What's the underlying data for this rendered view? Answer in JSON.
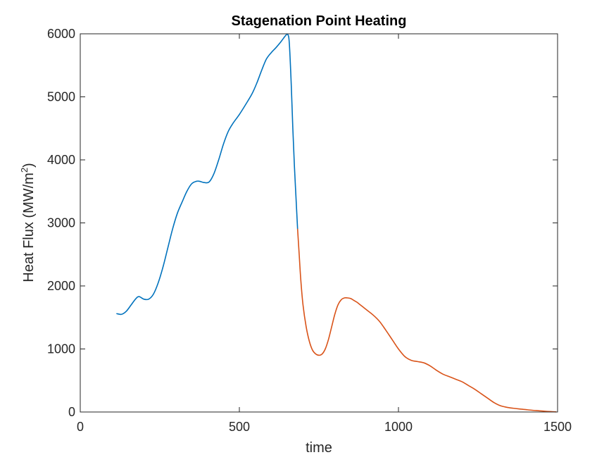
{
  "chart_data": {
    "type": "line",
    "title": "Stagenation Point Heating",
    "xlabel": "time",
    "ylabel": {
      "prefix": "Heat Flux (MW/m",
      "superscript": "2",
      "suffix": ")"
    },
    "xlim": [
      0,
      1500
    ],
    "ylim": [
      0,
      6000
    ],
    "xticks": [
      0,
      500,
      1000,
      1500
    ],
    "yticks": [
      0,
      1000,
      2000,
      3000,
      4000,
      5000,
      6000
    ],
    "colors": {
      "blue": "#0072BD",
      "orange": "#D95319"
    },
    "series": [
      {
        "color": "#0072BD",
        "x": [
          115,
          130,
          145,
          160,
          175,
          185,
          200,
          215,
          230,
          245,
          260,
          275,
          290,
          305,
          320,
          335,
          350,
          365,
          375,
          390,
          405,
          420,
          435,
          450,
          465,
          480,
          500,
          520,
          540,
          555,
          570,
          585,
          600,
          615,
          630,
          645,
          652,
          657,
          663,
          668,
          673,
          678,
          683
        ],
        "y": [
          1560,
          1550,
          1600,
          1700,
          1800,
          1830,
          1790,
          1790,
          1870,
          2050,
          2300,
          2600,
          2900,
          3150,
          3330,
          3500,
          3620,
          3660,
          3660,
          3640,
          3650,
          3780,
          4000,
          4250,
          4450,
          4580,
          4720,
          4880,
          5050,
          5220,
          5420,
          5600,
          5700,
          5780,
          5870,
          5970,
          5990,
          5850,
          5200,
          4500,
          3900,
          3400,
          2900
        ]
      },
      {
        "color": "#D95319",
        "x": [
          683,
          688,
          693,
          700,
          710,
          720,
          730,
          740,
          750,
          760,
          770,
          780,
          790,
          800,
          810,
          820,
          830,
          840,
          850,
          860,
          870,
          880,
          890,
          900,
          920,
          940,
          960,
          980,
          1000,
          1020,
          1040,
          1060,
          1080,
          1100,
          1120,
          1140,
          1160,
          1180,
          1200,
          1220,
          1240,
          1260,
          1280,
          1300,
          1320,
          1340,
          1360,
          1380,
          1400,
          1420,
          1440,
          1460,
          1480,
          1495
        ],
        "y": [
          2900,
          2500,
          2100,
          1700,
          1350,
          1120,
          980,
          920,
          900,
          920,
          1000,
          1150,
          1350,
          1550,
          1700,
          1780,
          1810,
          1810,
          1800,
          1770,
          1740,
          1700,
          1660,
          1620,
          1540,
          1440,
          1300,
          1150,
          1000,
          880,
          820,
          800,
          780,
          730,
          660,
          600,
          560,
          520,
          480,
          420,
          360,
          290,
          220,
          150,
          100,
          75,
          60,
          48,
          38,
          28,
          20,
          12,
          6,
          2
        ]
      }
    ]
  }
}
